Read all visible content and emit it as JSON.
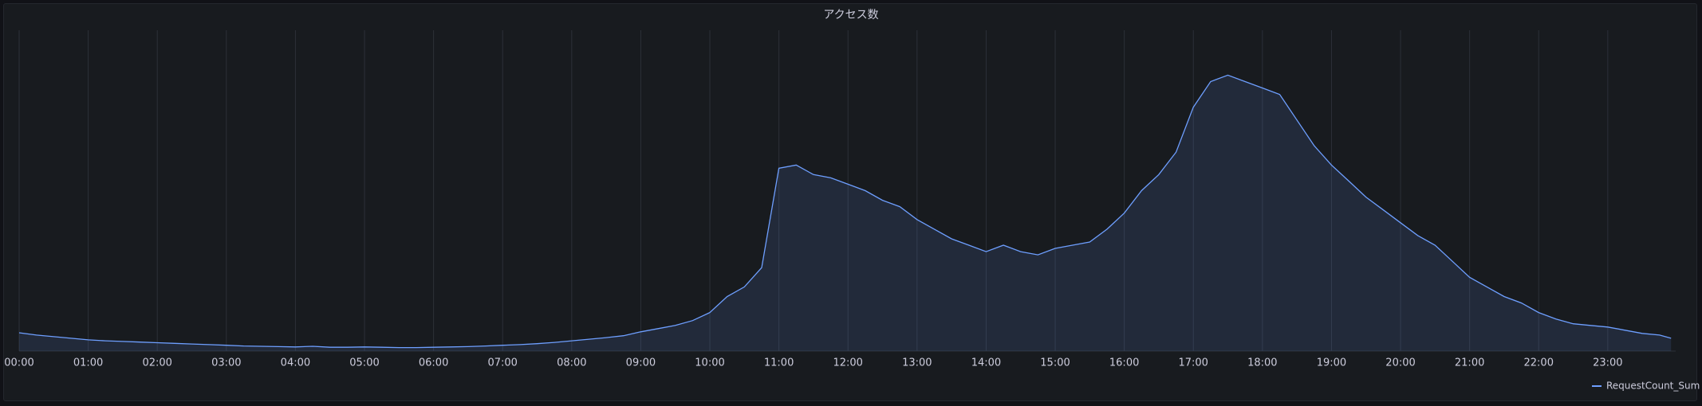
{
  "chart_data": {
    "type": "line",
    "title": "アクセス数",
    "x": [
      "00:00",
      "00:15",
      "00:30",
      "00:45",
      "01:00",
      "01:15",
      "01:30",
      "01:45",
      "02:00",
      "02:15",
      "02:30",
      "02:45",
      "03:00",
      "03:15",
      "03:30",
      "03:45",
      "04:00",
      "04:15",
      "04:30",
      "04:45",
      "05:00",
      "05:15",
      "05:30",
      "05:45",
      "06:00",
      "06:15",
      "06:30",
      "06:45",
      "07:00",
      "07:15",
      "07:30",
      "07:45",
      "08:00",
      "08:15",
      "08:30",
      "08:45",
      "09:00",
      "09:15",
      "09:30",
      "09:45",
      "10:00",
      "10:15",
      "10:30",
      "10:45",
      "11:00",
      "11:15",
      "11:30",
      "11:45",
      "12:00",
      "12:15",
      "12:30",
      "12:45",
      "13:00",
      "13:15",
      "13:30",
      "13:45",
      "14:00",
      "14:15",
      "14:30",
      "14:45",
      "15:00",
      "15:15",
      "15:30",
      "15:45",
      "16:00",
      "16:15",
      "16:30",
      "16:45",
      "17:00",
      "17:15",
      "17:30",
      "17:45",
      "18:00",
      "18:15",
      "18:30",
      "18:45",
      "19:00",
      "19:15",
      "19:30",
      "19:45",
      "20:00",
      "20:15",
      "20:30",
      "20:45",
      "21:00",
      "21:15",
      "21:30",
      "21:45",
      "22:00",
      "22:15",
      "22:30",
      "22:45",
      "23:00",
      "23:15",
      "23:30",
      "23:45",
      "23:55"
    ],
    "series": [
      {
        "name": "RequestCount_Sum",
        "color": "#6e9fff",
        "values": [
          5.7,
          5,
          4.5,
          4,
          3.5,
          3.2,
          3,
          2.8,
          2.6,
          2.4,
          2.2,
          2,
          1.8,
          1.6,
          1.5,
          1.4,
          1.3,
          1.5,
          1.2,
          1.2,
          1.3,
          1.2,
          1.1,
          1.1,
          1.2,
          1.3,
          1.4,
          1.6,
          1.8,
          2,
          2.3,
          2.7,
          3.2,
          3.7,
          4.2,
          4.8,
          6,
          7,
          8,
          9.5,
          12,
          17,
          20,
          26,
          57,
          58,
          55,
          54,
          52,
          50,
          47,
          45,
          41,
          38,
          35,
          33,
          31,
          33,
          31,
          30,
          32,
          33,
          34,
          38,
          43,
          50,
          55,
          62,
          76,
          84,
          86,
          84,
          82,
          80,
          72,
          64,
          58,
          53,
          48,
          44,
          40,
          36,
          33,
          28,
          23,
          20,
          17,
          15,
          12,
          10,
          8.5,
          8,
          7.5,
          6.5,
          5.5,
          5,
          4
        ]
      }
    ],
    "xlim": [
      "00:00",
      "23:59"
    ],
    "ylim": [
      0,
      100
    ],
    "xticks": [
      "00:00",
      "01:00",
      "02:00",
      "03:00",
      "04:00",
      "05:00",
      "06:00",
      "07:00",
      "08:00",
      "09:00",
      "10:00",
      "11:00",
      "12:00",
      "13:00",
      "14:00",
      "15:00",
      "16:00",
      "17:00",
      "18:00",
      "19:00",
      "20:00",
      "21:00",
      "22:00",
      "23:00"
    ],
    "grid": true,
    "legend": "bottom-right"
  }
}
